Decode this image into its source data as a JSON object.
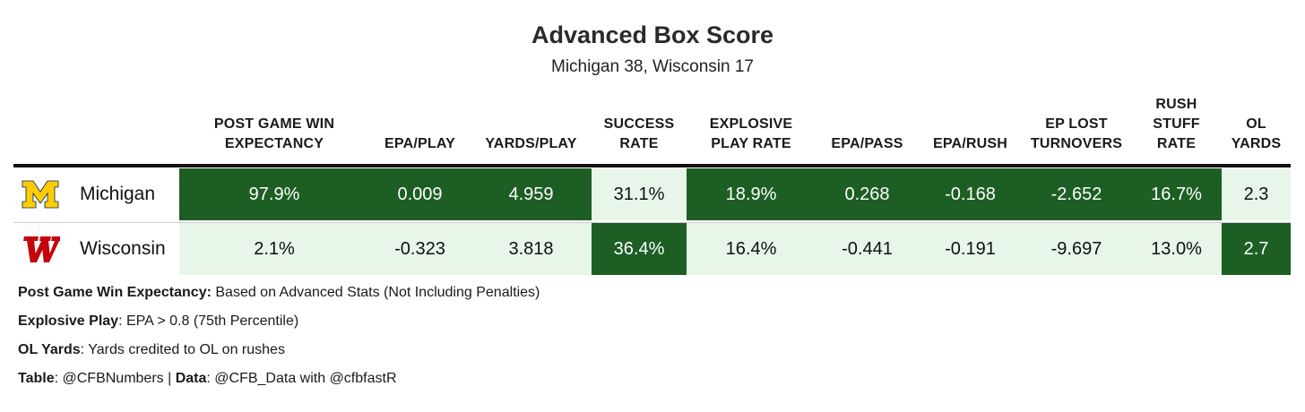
{
  "title": "Advanced Box Score",
  "subtitle": "Michigan 38, Wisconsin 17",
  "colors": {
    "dark_green": "#1c5e23",
    "light_green": "#e8f5e9",
    "michigan_maize": "#ffcb05",
    "wisconsin_red": "#c5050c"
  },
  "chart_data": {
    "type": "table",
    "title": "Advanced Box Score",
    "subtitle": "Michigan 38, Wisconsin 17",
    "columns": [
      {
        "line1": "POST GAME WIN",
        "line2": "EXPECTANCY",
        "line3": ""
      },
      {
        "line1": "",
        "line2": "EPA/PLAY",
        "line3": ""
      },
      {
        "line1": "",
        "line2": "YARDS/PLAY",
        "line3": ""
      },
      {
        "line1": "SUCCESS",
        "line2": "RATE",
        "line3": ""
      },
      {
        "line1": "EXPLOSIVE",
        "line2": "PLAY RATE",
        "line3": ""
      },
      {
        "line1": "",
        "line2": "EPA/PASS",
        "line3": ""
      },
      {
        "line1": "",
        "line2": "EPA/RUSH",
        "line3": ""
      },
      {
        "line1": "EP LOST",
        "line2": "TURNOVERS",
        "line3": ""
      },
      {
        "line1": "RUSH",
        "line2": "STUFF",
        "line3": "RATE"
      },
      {
        "line1": "OL",
        "line2": "YARDS",
        "line3": ""
      }
    ],
    "rows": [
      {
        "team": "Michigan",
        "logo_icon": "michigan-block-m-icon",
        "cells": [
          {
            "text": "97.9%",
            "shade": "dark"
          },
          {
            "text": "0.009",
            "shade": "dark"
          },
          {
            "text": "4.959",
            "shade": "dark"
          },
          {
            "text": "31.1%",
            "shade": "light"
          },
          {
            "text": "18.9%",
            "shade": "dark"
          },
          {
            "text": "0.268",
            "shade": "dark"
          },
          {
            "text": "-0.168",
            "shade": "dark"
          },
          {
            "text": "-2.652",
            "shade": "dark"
          },
          {
            "text": "16.7%",
            "shade": "dark"
          },
          {
            "text": "2.3",
            "shade": "light"
          }
        ]
      },
      {
        "team": "Wisconsin",
        "logo_icon": "wisconsin-motion-w-icon",
        "cells": [
          {
            "text": "2.1%",
            "shade": "light"
          },
          {
            "text": "-0.323",
            "shade": "light"
          },
          {
            "text": "3.818",
            "shade": "light"
          },
          {
            "text": "36.4%",
            "shade": "dark"
          },
          {
            "text": "16.4%",
            "shade": "light"
          },
          {
            "text": "-0.441",
            "shade": "light"
          },
          {
            "text": "-0.191",
            "shade": "light"
          },
          {
            "text": "-9.697",
            "shade": "light"
          },
          {
            "text": "13.0%",
            "shade": "light"
          },
          {
            "text": "2.7",
            "shade": "dark"
          }
        ]
      }
    ]
  },
  "footnotes": [
    {
      "label": "Post Game Win Expectancy:",
      "text": " Based on Advanced Stats (Not Including Penalties)"
    },
    {
      "label": "Explosive Play",
      "text": ": EPA > 0.8 (75th Percentile)"
    },
    {
      "label": "OL Yards",
      "text": ": Yards credited to OL on rushes"
    }
  ],
  "credit": {
    "table_label": "Table",
    "table_text": ": @CFBNumbers | ",
    "data_label": "Data",
    "data_text": ": @CFB_Data with @cfbfastR"
  }
}
